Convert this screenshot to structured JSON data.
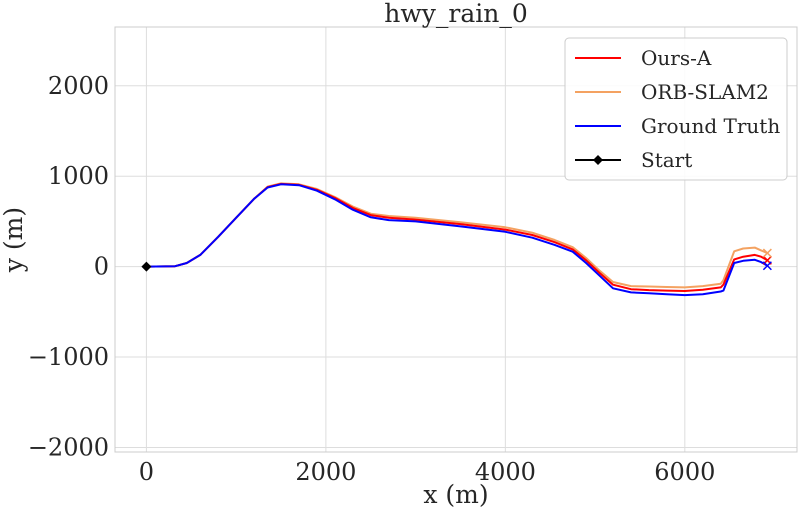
{
  "chart_data": {
    "type": "line",
    "title": "hwy_rain_0",
    "xlabel": "x (m)",
    "ylabel": "y (m)",
    "xlim": [
      -350,
      7250
    ],
    "ylim": [
      -2050,
      2650
    ],
    "x_ticks": [
      0,
      2000,
      4000,
      6000
    ],
    "x_tick_labels": [
      "0",
      "2000",
      "4000",
      "6000"
    ],
    "y_ticks": [
      -2000,
      -1000,
      0,
      1000,
      2000
    ],
    "y_tick_labels": [
      "−2000",
      "−1000",
      "0",
      "1000",
      "2000"
    ],
    "grid": true,
    "legend_position": "top-right",
    "series": [
      {
        "name": "Ours-A",
        "color": "#ff0000",
        "x": [
          0,
          320,
          450,
          600,
          800,
          1000,
          1200,
          1350,
          1500,
          1700,
          1900,
          2100,
          2300,
          2500,
          2700,
          3000,
          3500,
          4000,
          4300,
          4550,
          4750,
          4900,
          5050,
          5200,
          5400,
          5600,
          5800,
          6000,
          6200,
          6400,
          6430,
          6550,
          6650,
          6780,
          6850,
          6920
        ],
        "y": [
          0,
          5,
          40,
          130,
          330,
          540,
          750,
          880,
          915,
          905,
          850,
          760,
          650,
          570,
          540,
          520,
          470,
          410,
          350,
          270,
          190,
          70,
          -70,
          -200,
          -250,
          -260,
          -265,
          -270,
          -255,
          -230,
          -200,
          80,
          110,
          130,
          110,
          70
        ]
      },
      {
        "name": "ORB-SLAM2",
        "color": "#f4a261",
        "x": [
          0,
          320,
          450,
          600,
          800,
          1000,
          1200,
          1350,
          1500,
          1700,
          1900,
          2100,
          2300,
          2500,
          2700,
          3000,
          3500,
          4000,
          4300,
          4550,
          4750,
          4900,
          5050,
          5200,
          5400,
          5600,
          5800,
          6000,
          6200,
          6400,
          6430,
          6550,
          6650,
          6780,
          6850,
          6920
        ],
        "y": [
          0,
          5,
          40,
          130,
          330,
          540,
          750,
          885,
          920,
          910,
          858,
          770,
          665,
          585,
          560,
          540,
          490,
          435,
          375,
          295,
          215,
          95,
          -45,
          -170,
          -215,
          -220,
          -225,
          -230,
          -215,
          -190,
          -150,
          170,
          200,
          210,
          180,
          150
        ]
      },
      {
        "name": "Ground Truth",
        "color": "#0000ff",
        "x": [
          0,
          320,
          450,
          600,
          800,
          1000,
          1200,
          1350,
          1500,
          1700,
          1900,
          2100,
          2300,
          2500,
          2700,
          3000,
          3500,
          4000,
          4300,
          4550,
          4750,
          4900,
          5050,
          5200,
          5400,
          5600,
          5800,
          6000,
          6200,
          6400,
          6430,
          6550,
          6650,
          6780,
          6850,
          6920
        ],
        "y": [
          0,
          5,
          40,
          130,
          330,
          540,
          750,
          875,
          910,
          900,
          840,
          745,
          630,
          545,
          515,
          500,
          445,
          385,
          320,
          240,
          165,
          40,
          -100,
          -240,
          -285,
          -295,
          -305,
          -315,
          -305,
          -275,
          -265,
          40,
          65,
          75,
          50,
          10
        ]
      }
    ],
    "start_point": {
      "name": "Start",
      "x": 0,
      "y": 0,
      "color": "#000000"
    },
    "end_markers": [
      {
        "series": "Ours-A",
        "x": 6920,
        "y": 70
      },
      {
        "series": "ORB-SLAM2",
        "x": 6920,
        "y": 150
      },
      {
        "series": "Ground Truth",
        "x": 6920,
        "y": 10
      }
    ]
  }
}
